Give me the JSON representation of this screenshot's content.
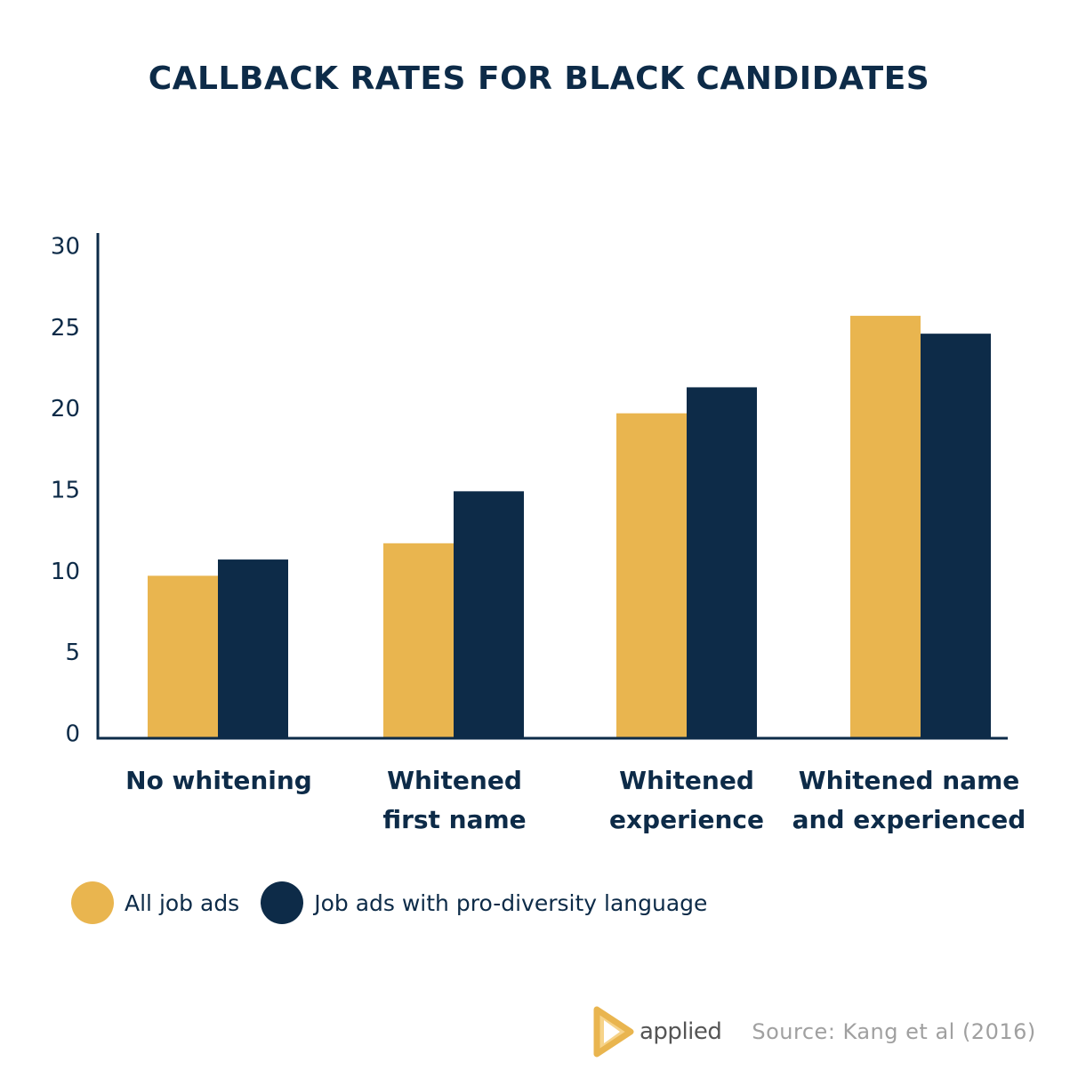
{
  "chart_data": {
    "type": "bar",
    "title": "CALLBACK RATES FOR BLACK CANDIDATES",
    "categories": [
      [
        "No whitening"
      ],
      [
        "Whitened",
        "first name"
      ],
      [
        "Whitened",
        "experience"
      ],
      [
        "Whitened name",
        "and experienced"
      ]
    ],
    "series": [
      {
        "name": "All job ads",
        "color": "#e9b54f",
        "values": [
          10,
          12,
          20,
          26
        ]
      },
      {
        "name": "Job ads with pro-diversity language",
        "color": "#0d2b48",
        "values": [
          11,
          15.2,
          21.6,
          24.9
        ]
      }
    ],
    "yticks": [
      0,
      5,
      10,
      15,
      20,
      25,
      30
    ],
    "ylim": [
      0,
      30
    ],
    "xlabel": "",
    "ylabel": "",
    "grid": false,
    "legend_position": "bottom-left",
    "axis_color": "#0d2b48"
  },
  "footer": {
    "logo_text": "applied",
    "logo_icon": "play-triangle-logo-icon",
    "source": "Source: Kang et al (2016)"
  }
}
